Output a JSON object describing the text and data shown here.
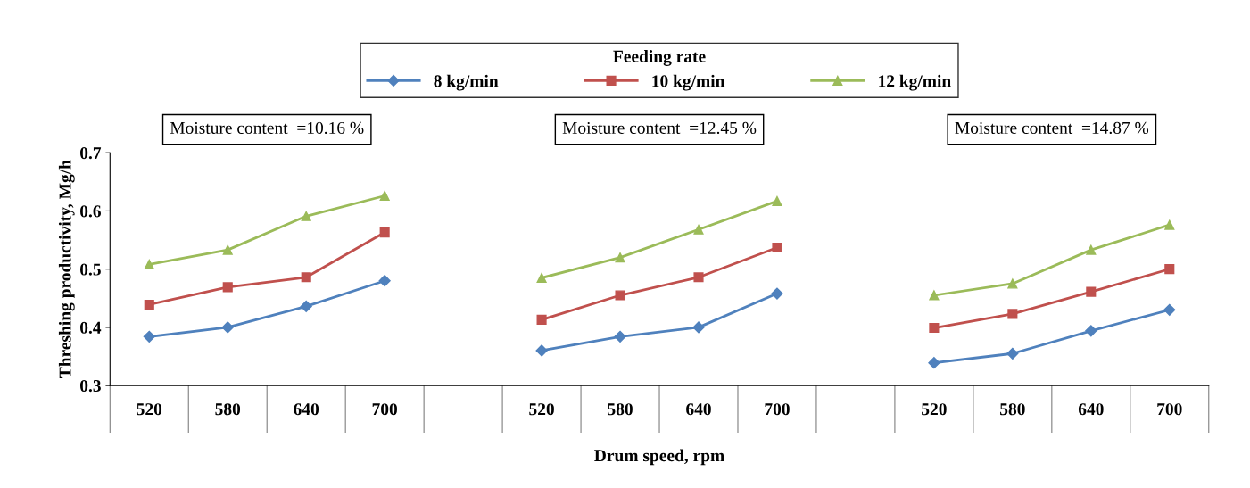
{
  "chart_data": {
    "type": "line",
    "xlabel": "Drum speed, rpm",
    "ylabel": "Threshing productivity, Mg/h",
    "legend_title": "Feeding rate",
    "categories": [
      "520",
      "580",
      "640",
      "700",
      null,
      "520",
      "580",
      "640",
      "700",
      null,
      "520",
      "580",
      "640",
      "700"
    ],
    "series": [
      {
        "name": "8 kg/min",
        "color": "#4f81bd",
        "marker": "diamond",
        "values": [
          0.384,
          0.4,
          0.436,
          0.48,
          null,
          0.36,
          0.384,
          0.4,
          0.458,
          null,
          0.339,
          0.355,
          0.394,
          0.43
        ]
      },
      {
        "name": "10 kg/min",
        "color": "#c0504d",
        "marker": "square",
        "values": [
          0.439,
          0.469,
          0.486,
          0.563,
          null,
          0.413,
          0.455,
          0.486,
          0.537,
          null,
          0.399,
          0.423,
          0.461,
          0.5
        ]
      },
      {
        "name": "12 kg/min",
        "color": "#9bbb59",
        "marker": "triangle",
        "values": [
          0.508,
          0.533,
          0.591,
          0.626,
          null,
          0.485,
          0.52,
          0.568,
          0.617,
          null,
          0.455,
          0.475,
          0.533,
          0.576
        ]
      }
    ],
    "annotations": [
      "Moisture content  =10.16 %",
      "Moisture content  =12.45 %",
      "Moisture content  =14.87 %"
    ],
    "ylim": [
      0.3,
      0.7
    ],
    "yticks": [
      0.3,
      0.4,
      0.5,
      0.6,
      0.7
    ],
    "grid": false,
    "legend": "top",
    "line_style": "solid"
  }
}
